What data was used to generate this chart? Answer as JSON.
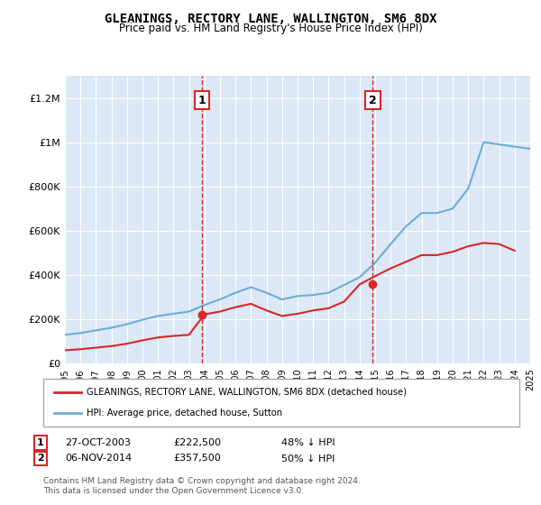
{
  "title": "GLEANINGS, RECTORY LANE, WALLINGTON, SM6 8DX",
  "subtitle": "Price paid vs. HM Land Registry's House Price Index (HPI)",
  "background_color": "#e8f0f8",
  "plot_bg_color": "#dce8f5",
  "legend_line1": "GLEANINGS, RECTORY LANE, WALLINGTON, SM6 8DX (detached house)",
  "legend_line2": "HPI: Average price, detached house, Sutton",
  "annotation1": {
    "label": "1",
    "date": "27-OCT-2003",
    "price": "£222,500",
    "pct": "48% ↓ HPI"
  },
  "annotation2": {
    "label": "2",
    "date": "06-NOV-2014",
    "price": "£357,500",
    "pct": "50% ↓ HPI"
  },
  "footnote": "Contains HM Land Registry data © Crown copyright and database right 2024.\nThis data is licensed under the Open Government Licence v3.0.",
  "hpi_color": "#6baed6",
  "price_color": "#d62728",
  "vline_color": "#d62728",
  "marker_color": "#d62728",
  "annotation_box_color": "#d62728",
  "ylim": [
    0,
    1300000
  ],
  "yticks": [
    0,
    200000,
    400000,
    600000,
    800000,
    1000000,
    1200000
  ],
  "ytick_labels": [
    "£0",
    "£200K",
    "£400K",
    "£600K",
    "£800K",
    "£1M",
    "£1.2M"
  ],
  "hpi_years": [
    1995,
    1996,
    1997,
    1998,
    1999,
    2000,
    2001,
    2002,
    2003,
    2004,
    2005,
    2006,
    2007,
    2008,
    2009,
    2010,
    2011,
    2012,
    2013,
    2014,
    2015,
    2016,
    2017,
    2018,
    2019,
    2020,
    2021,
    2022,
    2023,
    2024,
    2025
  ],
  "hpi_values": [
    130000,
    138000,
    150000,
    162000,
    178000,
    198000,
    215000,
    225000,
    235000,
    265000,
    290000,
    320000,
    345000,
    320000,
    290000,
    305000,
    310000,
    320000,
    355000,
    390000,
    455000,
    540000,
    620000,
    680000,
    680000,
    700000,
    790000,
    1000000,
    990000,
    980000,
    970000
  ],
  "sale_years": [
    2003.83,
    2014.85
  ],
  "sale_prices": [
    222500,
    357500
  ],
  "marker1_x": 2003.83,
  "marker1_y": 222500,
  "marker2_x": 2014.85,
  "marker2_y": 357500,
  "vline1_x": 2003.83,
  "vline2_x": 2014.85,
  "xmin": 1995,
  "xmax": 2025,
  "xticks": [
    1995,
    1996,
    1997,
    1998,
    1999,
    2000,
    2001,
    2002,
    2003,
    2004,
    2005,
    2006,
    2007,
    2008,
    2009,
    2010,
    2011,
    2012,
    2013,
    2014,
    2015,
    2016,
    2017,
    2018,
    2019,
    2020,
    2021,
    2022,
    2023,
    2024,
    2025
  ],
  "sale_line_years": [
    1995,
    1996,
    1997,
    1998,
    1999,
    2000,
    2001,
    2002,
    2003,
    2004,
    2005,
    2006,
    2007,
    2008,
    2009,
    2010,
    2011,
    2012,
    2013,
    2014,
    2015,
    2016,
    2017,
    2018,
    2019,
    2020,
    2021,
    2022,
    2023,
    2024
  ],
  "sale_line_values": [
    60000,
    65000,
    72000,
    79000,
    90000,
    105000,
    118000,
    125000,
    130000,
    222500,
    235000,
    255000,
    270000,
    240000,
    215000,
    225000,
    240000,
    250000,
    280000,
    357500,
    395000,
    430000,
    460000,
    490000,
    490000,
    505000,
    530000,
    545000,
    540000,
    510000
  ]
}
